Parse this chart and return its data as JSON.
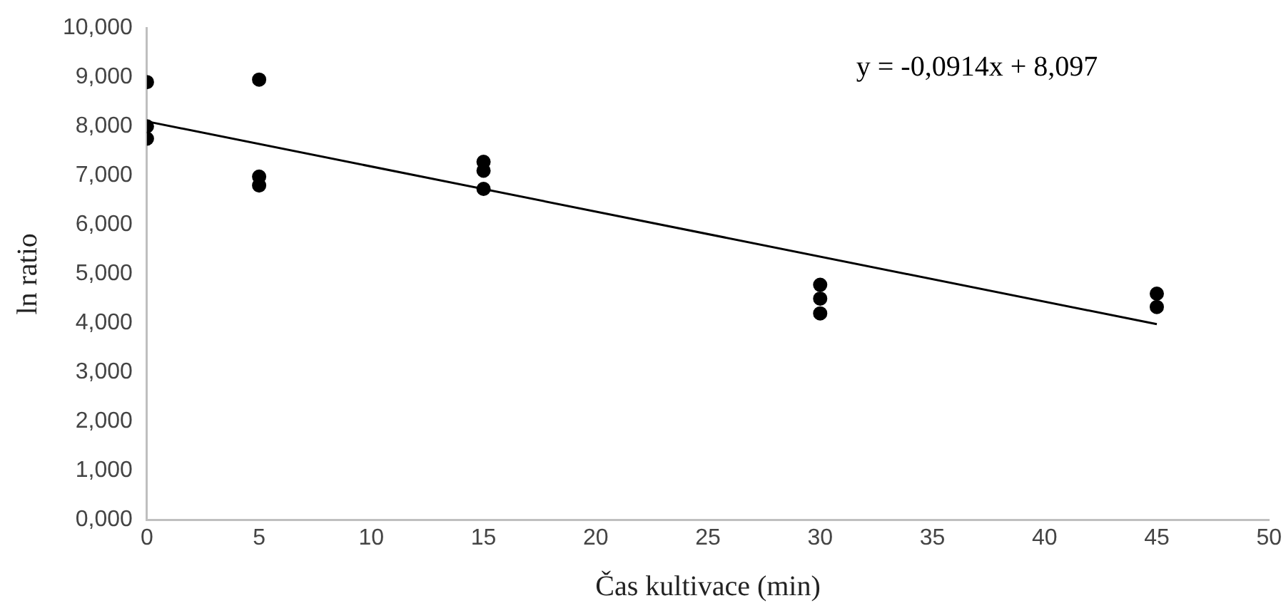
{
  "chart_data": {
    "type": "scatter",
    "xlabel": "Čas kultivace (min)",
    "ylabel": "ln ratio",
    "xlim": [
      0,
      50
    ],
    "xticks": [
      0,
      5,
      10,
      15,
      20,
      25,
      30,
      35,
      40,
      45,
      50
    ],
    "ylim": [
      0,
      10
    ],
    "yticks": [
      {
        "value": 0,
        "label": "0,000"
      },
      {
        "value": 1,
        "label": "1,000"
      },
      {
        "value": 2,
        "label": "2,000"
      },
      {
        "value": 3,
        "label": "3,000"
      },
      {
        "value": 4,
        "label": "4,000"
      },
      {
        "value": 5,
        "label": "5,000"
      },
      {
        "value": 6,
        "label": "6,000"
      },
      {
        "value": 7,
        "label": "7,000"
      },
      {
        "value": 8,
        "label": "8,000"
      },
      {
        "value": 9,
        "label": "9,000"
      },
      {
        "value": 10,
        "label": "10,000"
      }
    ],
    "grid": false,
    "legend": false,
    "marker": "circle",
    "annotations": [
      "y = -0,0914x + 8,097"
    ],
    "series": [
      {
        "type": "scatter",
        "color": "#000000",
        "x": [
          0,
          0,
          0,
          5,
          5,
          5,
          15,
          15,
          15,
          30,
          30,
          30,
          45,
          45
        ],
        "values": [
          8.9,
          8.0,
          7.75,
          8.95,
          6.98,
          6.8,
          7.28,
          7.1,
          6.73,
          4.78,
          4.5,
          4.2,
          4.6,
          4.33
        ]
      },
      {
        "type": "line",
        "color": "#000000",
        "marker": "none",
        "x": [
          0,
          45
        ],
        "values": [
          8.1,
          3.98
        ]
      }
    ]
  }
}
